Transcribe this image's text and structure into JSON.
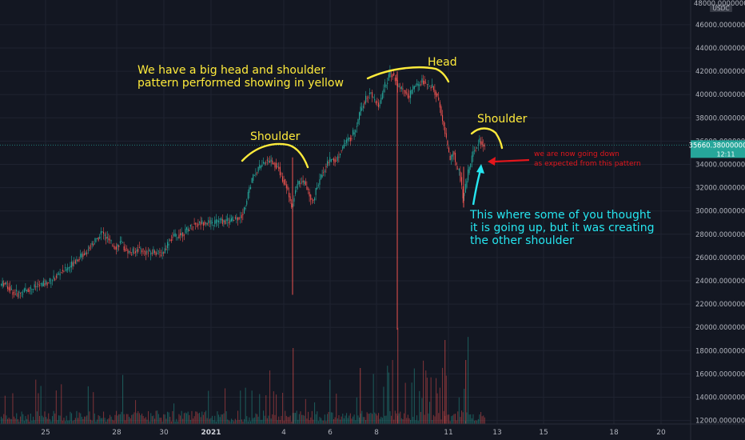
{
  "chart_data": {
    "type": "candlestick",
    "y_axis": {
      "currency": "USDC",
      "ticks": [
        "46000.00000000",
        "44000.00000000",
        "42000.00000000",
        "40000.00000000",
        "38000.00000000",
        "36000.00000000",
        "34000.00000000",
        "32000.00000000",
        "30000.00000000",
        "28000.00000000",
        "26000.00000000",
        "24000.00000000",
        "22000.00000000",
        "20000.00000000",
        "18000.00000000",
        "16000.00000000",
        "14000.00000000",
        "12000.00000000"
      ],
      "top_label": "48000.00000000",
      "ylim": [
        11500,
        48200
      ]
    },
    "x_axis": {
      "ticks": [
        "25",
        "28",
        "30",
        "2021",
        "4",
        "6",
        "8",
        "11",
        "13",
        "15",
        "18",
        "20"
      ]
    },
    "last_price": {
      "value": 35660.38,
      "label": "35660.38000000",
      "countdown": "12:11"
    },
    "colors": {
      "up": "#26a69a",
      "down": "#ef5350",
      "background": "#131722"
    },
    "price_path": [
      [
        0,
        23600
      ],
      [
        6,
        23800
      ],
      [
        12,
        23400
      ],
      [
        18,
        23000
      ],
      [
        24,
        22900
      ],
      [
        30,
        23100
      ],
      [
        38,
        23300
      ],
      [
        46,
        23500
      ],
      [
        54,
        23700
      ],
      [
        62,
        23900
      ],
      [
        70,
        24300
      ],
      [
        78,
        24800
      ],
      [
        86,
        25100
      ],
      [
        94,
        25700
      ],
      [
        102,
        26100
      ],
      [
        110,
        26600
      ],
      [
        116,
        27200
      ],
      [
        122,
        27500
      ],
      [
        128,
        28200
      ],
      [
        134,
        27700
      ],
      [
        140,
        27200
      ],
      [
        146,
        26900
      ],
      [
        152,
        27300
      ],
      [
        158,
        26700
      ],
      [
        164,
        26400
      ],
      [
        170,
        26600
      ],
      [
        176,
        26800
      ],
      [
        182,
        26500
      ],
      [
        188,
        26400
      ],
      [
        194,
        26600
      ],
      [
        200,
        26300
      ],
      [
        206,
        26500
      ],
      [
        212,
        27400
      ],
      [
        218,
        27800
      ],
      [
        224,
        27900
      ],
      [
        230,
        28100
      ],
      [
        236,
        28400
      ],
      [
        242,
        28800
      ],
      [
        250,
        28900
      ],
      [
        258,
        29100
      ],
      [
        266,
        28900
      ],
      [
        274,
        29200
      ],
      [
        282,
        29100
      ],
      [
        290,
        29200
      ],
      [
        298,
        29400
      ],
      [
        304,
        29700
      ],
      [
        308,
        30400
      ],
      [
        312,
        31700
      ],
      [
        316,
        32600
      ],
      [
        320,
        33300
      ],
      [
        326,
        33700
      ],
      [
        332,
        34200
      ],
      [
        338,
        34400
      ],
      [
        344,
        34100
      ],
      [
        350,
        33600
      ],
      [
        354,
        32900
      ],
      [
        358,
        32300
      ],
      [
        362,
        31300
      ],
      [
        366,
        30100
      ],
      [
        370,
        31800
      ],
      [
        376,
        32600
      ],
      [
        382,
        32400
      ],
      [
        388,
        31300
      ],
      [
        392,
        30800
      ],
      [
        398,
        32100
      ],
      [
        404,
        33200
      ],
      [
        410,
        34100
      ],
      [
        416,
        34500
      ],
      [
        422,
        34300
      ],
      [
        428,
        35400
      ],
      [
        434,
        35900
      ],
      [
        440,
        36300
      ],
      [
        446,
        37200
      ],
      [
        452,
        38700
      ],
      [
        458,
        39600
      ],
      [
        464,
        40300
      ],
      [
        470,
        39300
      ],
      [
        476,
        39000
      ],
      [
        482,
        40800
      ],
      [
        486,
        41300
      ],
      [
        490,
        41900
      ],
      [
        494,
        41600
      ],
      [
        500,
        40600
      ],
      [
        506,
        40300
      ],
      [
        512,
        39700
      ],
      [
        518,
        40600
      ],
      [
        524,
        40800
      ],
      [
        530,
        41200
      ],
      [
        536,
        40800
      ],
      [
        542,
        40600
      ],
      [
        548,
        39800
      ],
      [
        552,
        38700
      ],
      [
        556,
        37300
      ],
      [
        560,
        35800
      ],
      [
        564,
        34300
      ],
      [
        568,
        35200
      ],
      [
        572,
        33800
      ],
      [
        576,
        33300
      ],
      [
        580,
        31300
      ],
      [
        584,
        32300
      ],
      [
        588,
        33800
      ],
      [
        592,
        34900
      ],
      [
        596,
        35400
      ],
      [
        600,
        36100
      ],
      [
        604,
        35700
      ],
      [
        606,
        35600
      ]
    ],
    "spikes": [
      {
        "x": 366,
        "high": 34600,
        "low": 22800
      },
      {
        "x": 497,
        "high": 42000,
        "low": 19800
      },
      {
        "x": 580,
        "high": 33800,
        "low": 30300
      }
    ],
    "annotations": [
      {
        "text": "We have a big head and shoulder",
        "color": "#ffeb3b"
      },
      {
        "text": "pattern performed showing in yellow",
        "color": "#ffeb3b"
      },
      {
        "text": "Shoulder",
        "color": "#ffeb3b"
      },
      {
        "text": "Head",
        "color": "#ffeb3b"
      },
      {
        "text": "Shoulder",
        "color": "#ffeb3b"
      },
      {
        "text": "we are now going down",
        "color": "#e4161c"
      },
      {
        "text": "as expected from this pattern",
        "color": "#e4161c"
      },
      {
        "text": "This where some of you thought",
        "color": "#26e6f0"
      },
      {
        "text": "it is going up, but it was creating",
        "color": "#26e6f0"
      },
      {
        "text": "the other shoulder",
        "color": "#26e6f0"
      }
    ]
  }
}
